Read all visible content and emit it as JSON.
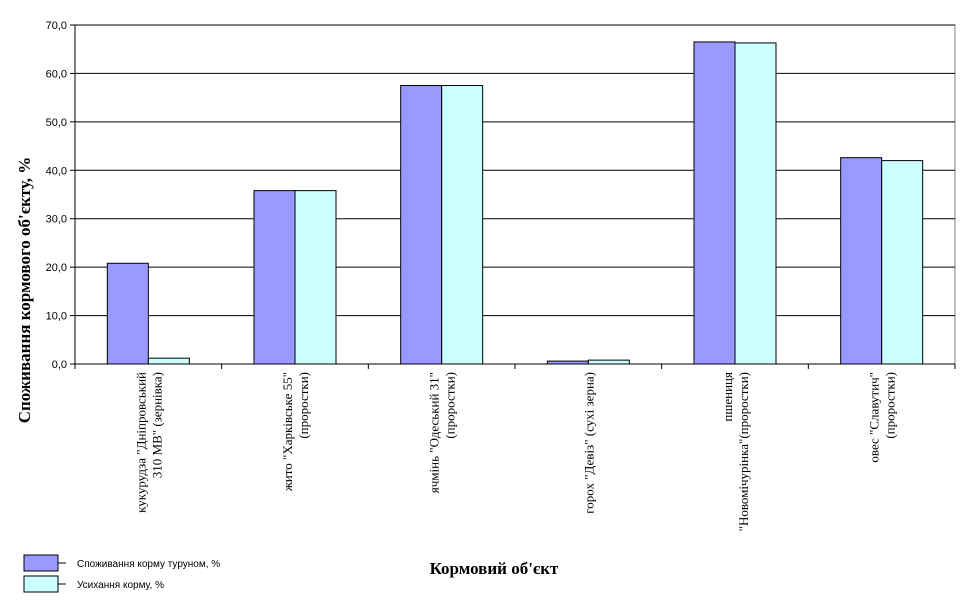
{
  "chart_data": {
    "type": "bar",
    "ylabel": "Споживання кормового об'єкту, %",
    "xlabel": "Кормовий об'єкт",
    "ylim": [
      0,
      70
    ],
    "ytick_step": 10,
    "ytick_labels": [
      "0,0",
      "10,0",
      "20,0",
      "30,0",
      "40,0",
      "50,0",
      "60,0",
      "70,0"
    ],
    "grid": true,
    "legend_position": "bottom-left",
    "categories": [
      [
        "кукурудза \"Дніпровський",
        "310 МВ\" (зернівка)"
      ],
      [
        "жито \"Харківське 55\"",
        "(проростки)"
      ],
      [
        "ячмінь \"Одеський 31\"",
        "(проростки)"
      ],
      [
        "горох \"Девіз\" (сухі зерна)"
      ],
      [
        "пшениця",
        "\"Новомічурінка\"(проростки)"
      ],
      [
        "овес \"Славутич\"",
        "(проростки)"
      ]
    ],
    "series": [
      {
        "name": "Споживання корму туруном, %",
        "color": "#9999ff",
        "values": [
          20.8,
          35.8,
          57.5,
          0.6,
          66.5,
          42.6
        ]
      },
      {
        "name": "Усихання корму, %",
        "color": "#ccffff",
        "values": [
          1.2,
          35.8,
          57.5,
          0.8,
          66.3,
          42.0
        ]
      }
    ]
  }
}
